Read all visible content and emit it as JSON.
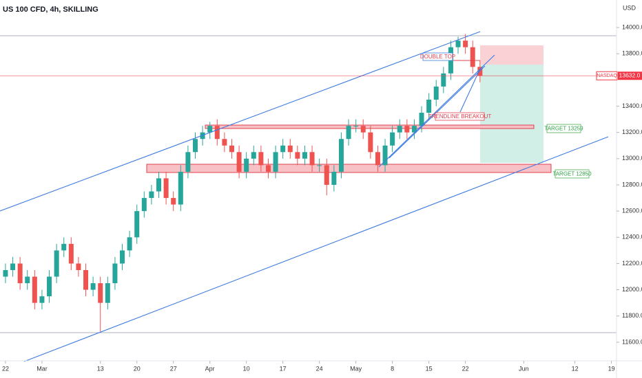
{
  "chart_data": {
    "type": "candlestick",
    "title": "US 100 CFD, 4h, SKILLING",
    "currency": "USD",
    "x": [
      0,
      1,
      2,
      3,
      4,
      5,
      6,
      7,
      8,
      9,
      10,
      11,
      12,
      13,
      14,
      15,
      16,
      17,
      18,
      19,
      20,
      21,
      22,
      23,
      24,
      25,
      26,
      27,
      28,
      29,
      30,
      31,
      32,
      33,
      34,
      35,
      36,
      37,
      38,
      39,
      40,
      41,
      42,
      43,
      44,
      45,
      46,
      47,
      48,
      49,
      50,
      51,
      52,
      53,
      54,
      55,
      56,
      57,
      58,
      59,
      60,
      61,
      62,
      63,
      64,
      65
    ],
    "open": [
      12100,
      12150,
      12200,
      12050,
      12100,
      11900,
      11950,
      12100,
      12300,
      12350,
      12200,
      12150,
      12000,
      12050,
      11900,
      12050,
      12200,
      12300,
      12400,
      12600,
      12700,
      12750,
      12850,
      12700,
      12650,
      12900,
      13050,
      13150,
      13200,
      13250,
      13150,
      13100,
      13050,
      12900,
      13000,
      13050,
      12950,
      12900,
      13050,
      13100,
      13050,
      13000,
      13050,
      12950,
      12950,
      12800,
      12900,
      13150,
      13250,
      13250,
      13200,
      13050,
      12950,
      13100,
      13200,
      13250,
      13200,
      13250,
      13350,
      13450,
      13550,
      13650,
      13850,
      13900,
      13850,
      13700
    ],
    "high": [
      12200,
      12250,
      12250,
      12150,
      12150,
      12000,
      12150,
      12350,
      12400,
      12400,
      12250,
      12200,
      12100,
      12100,
      12100,
      12250,
      12350,
      12450,
      12650,
      12750,
      12800,
      12900,
      12900,
      12750,
      12950,
      13100,
      13200,
      13250,
      13280,
      13300,
      13200,
      13150,
      13100,
      13050,
      13100,
      13100,
      13000,
      13100,
      13150,
      13150,
      13100,
      13100,
      13100,
      13000,
      13000,
      12950,
      13200,
      13300,
      13300,
      13300,
      13250,
      13100,
      13150,
      13250,
      13300,
      13300,
      13300,
      13400,
      13500,
      13600,
      13700,
      13900,
      13930,
      13950,
      13900,
      13750
    ],
    "low": [
      12050,
      12100,
      12000,
      12000,
      11850,
      11850,
      11900,
      12050,
      12250,
      12150,
      12100,
      11950,
      11950,
      11680,
      11850,
      12000,
      12150,
      12250,
      12350,
      12550,
      12650,
      12700,
      12650,
      12600,
      12600,
      12850,
      13000,
      13100,
      13150,
      13100,
      13050,
      13000,
      12850,
      12850,
      12950,
      12900,
      12850,
      12850,
      13000,
      13000,
      12950,
      12950,
      12900,
      12900,
      12720,
      12750,
      12850,
      13100,
      13200,
      13150,
      13000,
      12900,
      12900,
      13050,
      13150,
      13150,
      13150,
      13200,
      13300,
      13400,
      13500,
      13600,
      13800,
      13800,
      13650,
      13582
    ],
    "close": [
      12150,
      12200,
      12050,
      12100,
      11900,
      11950,
      12100,
      12300,
      12350,
      12200,
      12150,
      12000,
      12050,
      11900,
      12050,
      12200,
      12300,
      12400,
      12600,
      12700,
      12750,
      12850,
      12700,
      12650,
      12900,
      13050,
      13150,
      13200,
      13250,
      13150,
      13100,
      13050,
      12900,
      13000,
      13050,
      12950,
      12900,
      13050,
      13100,
      13050,
      13000,
      13050,
      12950,
      12950,
      12800,
      12900,
      13150,
      13250,
      13250,
      13200,
      13050,
      12950,
      13100,
      13200,
      13250,
      13200,
      13250,
      13350,
      13450,
      13550,
      13650,
      13850,
      13900,
      13850,
      13700,
      13632
    ],
    "up_color": "#26a69a",
    "down_color": "#ef5350",
    "xlim": [
      -0.75,
      83.7
    ],
    "xticks": [
      {
        "value": 0,
        "label": "22"
      },
      {
        "value": 5,
        "label": "Mar"
      },
      {
        "value": 13,
        "label": "13"
      },
      {
        "value": 18,
        "label": "20"
      },
      {
        "value": 23,
        "label": "27"
      },
      {
        "value": 28,
        "label": "Apr"
      },
      {
        "value": 33,
        "label": "10"
      },
      {
        "value": 38,
        "label": "17"
      },
      {
        "value": 43,
        "label": "24"
      },
      {
        "value": 48,
        "label": "May"
      },
      {
        "value": 53,
        "label": "8"
      },
      {
        "value": 58,
        "label": "15"
      },
      {
        "value": 63,
        "label": "22"
      },
      {
        "value": 71,
        "label": "Jun"
      },
      {
        "value": 78,
        "label": "12"
      },
      {
        "value": 83,
        "label": "19"
      }
    ],
    "ylim": [
      11458,
      14210
    ],
    "yticks": [
      {
        "value": 11600,
        "label": "11600.0"
      },
      {
        "value": 11800,
        "label": "11800.0"
      },
      {
        "value": 12000,
        "label": "12000.0"
      },
      {
        "value": 12200,
        "label": "12200.0"
      },
      {
        "value": 12400,
        "label": "12400.0"
      },
      {
        "value": 12600,
        "label": "12600.0"
      },
      {
        "value": 12800,
        "label": "12800.0"
      },
      {
        "value": 13000,
        "label": "13000.0"
      },
      {
        "value": 13200,
        "label": "13200.0"
      },
      {
        "value": 13400,
        "label": "13400.0"
      },
      {
        "value": 13800,
        "label": "13800.0"
      },
      {
        "value": 14000,
        "label": "14000.0"
      }
    ],
    "last_price": {
      "value": 13632,
      "label": "13632.0"
    },
    "symbol_label": "NASDAQ",
    "annotations": [
      "DOUBLE TOP",
      "TRENDLINE BREAKOUT",
      "TARGET 13259",
      "TARGET 12850"
    ]
  }
}
